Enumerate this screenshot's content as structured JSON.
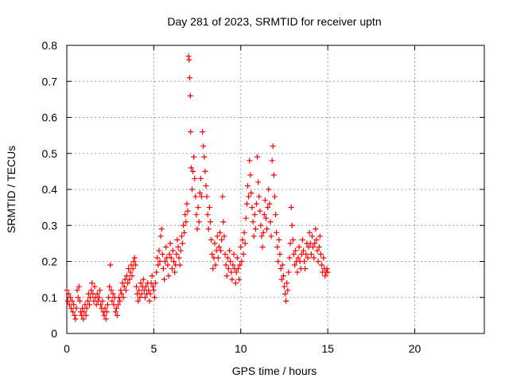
{
  "chart_data": {
    "type": "scatter",
    "title": "Day 281 of 2023, SRMTID for receiver uptn",
    "xlabel": "GPS time / hours",
    "ylabel": "SRMTID / TECUs",
    "xlim": [
      0,
      24
    ],
    "ylim": [
      0,
      0.8
    ],
    "x_ticks": [
      0,
      5,
      10,
      15,
      20
    ],
    "x_tick_labels": [
      "0",
      "5",
      "10",
      "15",
      "20"
    ],
    "y_ticks": [
      0,
      0.1,
      0.2,
      0.3,
      0.4,
      0.5,
      0.6,
      0.7,
      0.8
    ],
    "y_tick_labels": [
      "0",
      "0.1",
      "0.2",
      "0.3",
      "0.4",
      "0.5",
      "0.6",
      "0.7",
      "0.8"
    ],
    "grid": true,
    "marker": "+",
    "color": "#ff0000",
    "series": [
      {
        "name": "SRMTID",
        "points": [
          [
            0.0,
            0.12
          ],
          [
            0.05,
            0.09
          ],
          [
            0.1,
            0.11
          ],
          [
            0.15,
            0.08
          ],
          [
            0.2,
            0.1
          ],
          [
            0.25,
            0.07
          ],
          [
            0.3,
            0.09
          ],
          [
            0.35,
            0.06
          ],
          [
            0.4,
            0.08
          ],
          [
            0.45,
            0.05
          ],
          [
            0.5,
            0.04
          ],
          [
            0.55,
            0.07
          ],
          [
            0.6,
            0.12
          ],
          [
            0.65,
            0.1
          ],
          [
            0.7,
            0.13
          ],
          [
            0.75,
            0.09
          ],
          [
            0.8,
            0.06
          ],
          [
            0.85,
            0.05
          ],
          [
            0.9,
            0.07
          ],
          [
            0.95,
            0.04
          ],
          [
            1.0,
            0.06
          ],
          [
            1.05,
            0.08
          ],
          [
            1.1,
            0.05
          ],
          [
            1.15,
            0.07
          ],
          [
            1.2,
            0.09
          ],
          [
            1.25,
            0.11
          ],
          [
            1.3,
            0.08
          ],
          [
            1.35,
            0.1
          ],
          [
            1.4,
            0.12
          ],
          [
            1.45,
            0.14
          ],
          [
            1.5,
            0.11
          ],
          [
            1.55,
            0.09
          ],
          [
            1.6,
            0.13
          ],
          [
            1.65,
            0.1
          ],
          [
            1.7,
            0.08
          ],
          [
            1.75,
            0.11
          ],
          [
            1.8,
            0.09
          ],
          [
            1.85,
            0.1
          ],
          [
            1.9,
            0.12
          ],
          [
            1.95,
            0.08
          ],
          [
            2.0,
            0.07
          ],
          [
            2.05,
            0.09
          ],
          [
            2.1,
            0.06
          ],
          [
            2.15,
            0.05
          ],
          [
            2.2,
            0.07
          ],
          [
            2.25,
            0.04
          ],
          [
            2.3,
            0.06
          ],
          [
            2.35,
            0.08
          ],
          [
            2.4,
            0.1
          ],
          [
            2.45,
            0.13
          ],
          [
            2.5,
            0.19
          ],
          [
            2.55,
            0.12
          ],
          [
            2.6,
            0.09
          ],
          [
            2.65,
            0.11
          ],
          [
            2.7,
            0.08
          ],
          [
            2.75,
            0.1
          ],
          [
            2.8,
            0.06
          ],
          [
            2.85,
            0.07
          ],
          [
            2.9,
            0.05
          ],
          [
            2.95,
            0.08
          ],
          [
            3.0,
            0.1
          ],
          [
            3.05,
            0.09
          ],
          [
            3.1,
            0.12
          ],
          [
            3.15,
            0.11
          ],
          [
            3.2,
            0.14
          ],
          [
            3.25,
            0.1
          ],
          [
            3.3,
            0.13
          ],
          [
            3.35,
            0.15
          ],
          [
            3.4,
            0.12
          ],
          [
            3.45,
            0.16
          ],
          [
            3.5,
            0.14
          ],
          [
            3.55,
            0.18
          ],
          [
            3.6,
            0.15
          ],
          [
            3.65,
            0.17
          ],
          [
            3.7,
            0.19
          ],
          [
            3.75,
            0.16
          ],
          [
            3.8,
            0.18
          ],
          [
            3.85,
            0.2
          ],
          [
            3.9,
            0.21
          ],
          [
            3.95,
            0.19
          ],
          [
            4.0,
            0.13
          ],
          [
            4.05,
            0.11
          ],
          [
            4.1,
            0.09
          ],
          [
            4.15,
            0.12
          ],
          [
            4.2,
            0.1
          ],
          [
            4.25,
            0.14
          ],
          [
            4.3,
            0.11
          ],
          [
            4.35,
            0.13
          ],
          [
            4.4,
            0.15
          ],
          [
            4.45,
            0.12
          ],
          [
            4.5,
            0.1
          ],
          [
            4.55,
            0.13
          ],
          [
            4.6,
            0.11
          ],
          [
            4.65,
            0.14
          ],
          [
            4.7,
            0.12
          ],
          [
            4.75,
            0.09
          ],
          [
            4.8,
            0.11
          ],
          [
            4.85,
            0.14
          ],
          [
            4.9,
            0.16
          ],
          [
            4.95,
            0.13
          ],
          [
            5.0,
            0.12
          ],
          [
            5.05,
            0.1
          ],
          [
            5.1,
            0.14
          ],
          [
            5.15,
            0.17
          ],
          [
            5.2,
            0.21
          ],
          [
            5.25,
            0.19
          ],
          [
            5.3,
            0.23
          ],
          [
            5.35,
            0.2
          ],
          [
            5.4,
            0.27
          ],
          [
            5.45,
            0.29
          ],
          [
            5.5,
            0.22
          ],
          [
            5.55,
            0.18
          ],
          [
            5.6,
            0.15
          ],
          [
            5.65,
            0.2
          ],
          [
            5.7,
            0.24
          ],
          [
            5.75,
            0.21
          ],
          [
            5.8,
            0.19
          ],
          [
            5.85,
            0.16
          ],
          [
            5.9,
            0.22
          ],
          [
            5.95,
            0.25
          ],
          [
            6.0,
            0.21
          ],
          [
            6.05,
            0.18
          ],
          [
            6.1,
            0.23
          ],
          [
            6.15,
            0.2
          ],
          [
            6.2,
            0.17
          ],
          [
            6.25,
            0.19
          ],
          [
            6.3,
            0.22
          ],
          [
            6.35,
            0.26
          ],
          [
            6.4,
            0.24
          ],
          [
            6.45,
            0.21
          ],
          [
            6.5,
            0.19
          ],
          [
            6.55,
            0.23
          ],
          [
            6.6,
            0.27
          ],
          [
            6.65,
            0.25
          ],
          [
            6.7,
            0.3
          ],
          [
            6.75,
            0.28
          ],
          [
            6.8,
            0.33
          ],
          [
            6.85,
            0.31
          ],
          [
            6.9,
            0.36
          ],
          [
            6.95,
            0.34
          ],
          [
            7.0,
            0.77
          ],
          [
            7.03,
            0.76
          ],
          [
            7.06,
            0.71
          ],
          [
            7.1,
            0.66
          ],
          [
            7.12,
            0.56
          ],
          [
            7.15,
            0.46
          ],
          [
            7.2,
            0.4
          ],
          [
            7.25,
            0.45
          ],
          [
            7.3,
            0.49
          ],
          [
            7.35,
            0.43
          ],
          [
            7.4,
            0.38
          ],
          [
            7.45,
            0.33
          ],
          [
            7.5,
            0.29
          ],
          [
            7.55,
            0.35
          ],
          [
            7.6,
            0.31
          ],
          [
            7.65,
            0.39
          ],
          [
            7.7,
            0.43
          ],
          [
            7.75,
            0.38
          ],
          [
            7.8,
            0.56
          ],
          [
            7.85,
            0.52
          ],
          [
            7.9,
            0.49
          ],
          [
            7.95,
            0.45
          ],
          [
            8.0,
            0.41
          ],
          [
            8.05,
            0.38
          ],
          [
            8.1,
            0.33
          ],
          [
            8.15,
            0.29
          ],
          [
            8.2,
            0.35
          ],
          [
            8.25,
            0.31
          ],
          [
            8.3,
            0.26
          ],
          [
            8.35,
            0.22
          ],
          [
            8.4,
            0.18
          ],
          [
            8.45,
            0.21
          ],
          [
            8.5,
            0.25
          ],
          [
            8.55,
            0.19
          ],
          [
            8.6,
            0.23
          ],
          [
            8.65,
            0.27
          ],
          [
            8.7,
            0.21
          ],
          [
            8.75,
            0.24
          ],
          [
            8.8,
            0.28
          ],
          [
            8.85,
            0.23
          ],
          [
            8.9,
            0.26
          ],
          [
            8.95,
            0.38
          ],
          [
            9.0,
            0.31
          ],
          [
            9.05,
            0.27
          ],
          [
            9.1,
            0.22
          ],
          [
            9.15,
            0.19
          ],
          [
            9.2,
            0.16
          ],
          [
            9.25,
            0.21
          ],
          [
            9.3,
            0.18
          ],
          [
            9.35,
            0.23
          ],
          [
            9.4,
            0.2
          ],
          [
            9.45,
            0.17
          ],
          [
            9.5,
            0.15
          ],
          [
            9.55,
            0.19
          ],
          [
            9.6,
            0.22
          ],
          [
            9.65,
            0.18
          ],
          [
            9.7,
            0.14
          ],
          [
            9.75,
            0.17
          ],
          [
            9.8,
            0.21
          ],
          [
            9.85,
            0.18
          ],
          [
            9.9,
            0.15
          ],
          [
            9.95,
            0.19
          ],
          [
            10.0,
            0.24
          ],
          [
            10.05,
            0.2
          ],
          [
            10.1,
            0.26
          ],
          [
            10.15,
            0.22
          ],
          [
            10.2,
            0.28
          ],
          [
            10.25,
            0.25
          ],
          [
            10.3,
            0.32
          ],
          [
            10.35,
            0.36
          ],
          [
            10.4,
            0.41
          ],
          [
            10.45,
            0.38
          ],
          [
            10.5,
            0.48
          ],
          [
            10.55,
            0.44
          ],
          [
            10.6,
            0.39
          ],
          [
            10.65,
            0.35
          ],
          [
            10.7,
            0.31
          ],
          [
            10.75,
            0.27
          ],
          [
            10.8,
            0.33
          ],
          [
            10.85,
            0.29
          ],
          [
            10.9,
            0.36
          ],
          [
            10.95,
            0.49
          ],
          [
            11.0,
            0.42
          ],
          [
            11.05,
            0.38
          ],
          [
            11.1,
            0.34
          ],
          [
            11.15,
            0.3
          ],
          [
            11.2,
            0.27
          ],
          [
            11.25,
            0.24
          ],
          [
            11.3,
            0.28
          ],
          [
            11.35,
            0.33
          ],
          [
            11.4,
            0.37
          ],
          [
            11.45,
            0.32
          ],
          [
            11.5,
            0.29
          ],
          [
            11.55,
            0.35
          ],
          [
            11.6,
            0.4
          ],
          [
            11.65,
            0.36
          ],
          [
            11.7,
            0.31
          ],
          [
            11.75,
            0.27
          ],
          [
            11.8,
            0.48
          ],
          [
            11.85,
            0.52
          ],
          [
            11.9,
            0.44
          ],
          [
            11.95,
            0.38
          ],
          [
            12.0,
            0.33
          ],
          [
            12.05,
            0.28
          ],
          [
            12.1,
            0.24
          ],
          [
            12.15,
            0.2
          ],
          [
            12.2,
            0.26
          ],
          [
            12.25,
            0.22
          ],
          [
            12.3,
            0.18
          ],
          [
            12.35,
            0.15
          ],
          [
            12.4,
            0.19
          ],
          [
            12.45,
            0.16
          ],
          [
            12.5,
            0.13
          ],
          [
            12.55,
            0.11
          ],
          [
            12.6,
            0.09
          ],
          [
            12.65,
            0.14
          ],
          [
            12.7,
            0.12
          ],
          [
            12.75,
            0.17
          ],
          [
            12.8,
            0.21
          ],
          [
            12.85,
            0.25
          ],
          [
            12.9,
            0.35
          ],
          [
            12.95,
            0.3
          ],
          [
            13.0,
            0.26
          ],
          [
            13.05,
            0.22
          ],
          [
            13.1,
            0.19
          ],
          [
            13.15,
            0.23
          ],
          [
            13.2,
            0.2
          ],
          [
            13.25,
            0.17
          ],
          [
            13.3,
            0.21
          ],
          [
            13.35,
            0.24
          ],
          [
            13.4,
            0.2
          ],
          [
            13.45,
            0.18
          ],
          [
            13.5,
            0.22
          ],
          [
            13.55,
            0.26
          ],
          [
            13.6,
            0.23
          ],
          [
            13.65,
            0.2
          ],
          [
            13.7,
            0.18
          ],
          [
            13.75,
            0.22
          ],
          [
            13.8,
            0.25
          ],
          [
            13.85,
            0.21
          ],
          [
            13.9,
            0.24
          ],
          [
            13.95,
            0.28
          ],
          [
            14.0,
            0.25
          ],
          [
            14.05,
            0.22
          ],
          [
            14.1,
            0.27
          ],
          [
            14.15,
            0.24
          ],
          [
            14.2,
            0.21
          ],
          [
            14.25,
            0.25
          ],
          [
            14.3,
            0.29
          ],
          [
            14.35,
            0.26
          ],
          [
            14.4,
            0.23
          ],
          [
            14.45,
            0.2
          ],
          [
            14.5,
            0.24
          ],
          [
            14.55,
            0.27
          ],
          [
            14.6,
            0.22
          ],
          [
            14.65,
            0.19
          ],
          [
            14.7,
            0.17
          ],
          [
            14.75,
            0.21
          ],
          [
            14.8,
            0.18
          ],
          [
            14.85,
            0.16
          ],
          [
            14.9,
            0.17
          ],
          [
            14.95,
            0.18
          ],
          [
            15.0,
            0.17
          ]
        ]
      }
    ]
  }
}
